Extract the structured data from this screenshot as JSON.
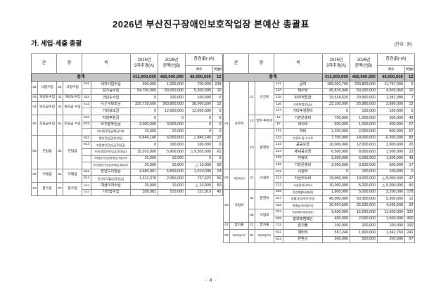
{
  "title": "2026년 부산진구장애인보호작업장 본예산 총괄표",
  "section_heading": "가. 세입·세출 총괄",
  "unit_label": "(단위 : 원)",
  "page_number": "- 4 -",
  "header": {
    "gwan": "관",
    "hang": "항",
    "mok": "목",
    "col_a_l1": "2025년",
    "col_a_l2": "3차추경(A)",
    "col_b_l1": "2026년",
    "col_b_l2": "본예산(B)",
    "diff": "증감(B)-(A)",
    "amount": "액수",
    "ratio": "비율(%)"
  },
  "revenue": {
    "total": {
      "label": "총계",
      "a": "412,000,000",
      "b": "460,000,000",
      "diff": "48,000,000",
      "ratio": "12"
    },
    "rows": [
      [
        {
          "t": "02",
          "rs": 2
        },
        {
          "t": "사업수입",
          "rs": 2
        },
        {
          "t": "21",
          "rs": 2
        },
        {
          "t": "사업수입",
          "rs": 2
        },
        {
          "t": "211"
        },
        {
          "t": "세차사업수입"
        },
        {
          "t": "300,000"
        },
        {
          "t": "1,000,000"
        },
        {
          "t": "700,000"
        },
        {
          "t": "233"
        }
      ],
      [
        null,
        null,
        null,
        null,
        {
          "t": ""
        },
        {
          "t": "임가공수입"
        },
        {
          "t": "54,700,000"
        },
        {
          "t": "60,000,000"
        },
        {
          "t": "5,300,000"
        },
        {
          "t": "10"
        }
      ],
      [
        {
          "t": "03"
        },
        {
          "t": "과년도수입"
        },
        {
          "t": "31"
        },
        {
          "t": "과년도수입"
        },
        {
          "t": "311"
        },
        {
          "t": "과년도수입"
        },
        {
          "t": "0"
        },
        {
          "t": "100,000"
        },
        {
          "t": "100,000"
        },
        {
          "t": "0"
        }
      ],
      [
        {
          "t": "04",
          "rs": 2
        },
        {
          "t": "보조금수입",
          "rs": 2
        },
        {
          "t": "41",
          "rs": 2
        },
        {
          "t": "보조금\n수입",
          "rs": 2
        },
        {
          "t": "412"
        },
        {
          "t": "시군구보조금"
        },
        {
          "t": "325,739,500"
        },
        {
          "t": "363,800,000"
        },
        {
          "t": "38,060,500"
        },
        {
          "t": "12"
        }
      ],
      [
        null,
        null,
        null,
        null,
        {
          "t": ""
        },
        {
          "t": "기타보조금"
        },
        {
          "t": "0"
        },
        {
          "t": "12,000,000"
        },
        {
          "t": "12,000,000"
        },
        {
          "t": "0"
        }
      ],
      [
        {
          "t": "05",
          "rs": 3
        },
        {
          "t": "후원금수입",
          "rs": 3
        },
        {
          "t": "51",
          "rs": 3
        },
        {
          "t": "후원금\n수입",
          "rs": 3
        },
        {
          "t": "511"
        },
        {
          "t": "지정후원금"
        },
        {
          "t": "0"
        },
        {
          "t": "0"
        },
        {
          "t": "0"
        },
        {
          "t": "0"
        }
      ],
      [
        null,
        null,
        null,
        null,
        {
          "t": "512"
        },
        {
          "t": "비지정후원금"
        },
        {
          "t": "3,000,000"
        },
        {
          "t": "3,000,000"
        },
        {
          "t": "0"
        },
        {
          "t": "0"
        }
      ],
      [
        null,
        null,
        null,
        null,
        {
          "t": ""
        },
        {
          "t": "비지정후원금예금이자",
          "f": "f-sm"
        },
        {
          "t": "10,000"
        },
        {
          "t": "10,000"
        },
        {
          "t": "0"
        },
        {
          "t": "0"
        }
      ],
      [
        {
          "t": "08",
          "rs": 5
        },
        {
          "t": "전입금",
          "rs": 5
        },
        {
          "t": "81",
          "rs": 5
        },
        {
          "t": "전입금",
          "rs": 5
        },
        {
          "t": "811"
        },
        {
          "t": "법인전입금(자부담)",
          "f": "f-sm"
        },
        {
          "t": "6,846,140"
        },
        {
          "t": "6,000,000"
        },
        {
          "t": "△ 846,140"
        },
        {
          "t": "12"
        }
      ],
      [
        null,
        null,
        null,
        null,
        {
          "t": "812"
        },
        {
          "t": "지정법인전입금(후원금)",
          "f": "f-sm"
        },
        {
          "t": "0"
        },
        {
          "t": "100,000"
        },
        {
          "t": "100,000"
        },
        {
          "t": "0"
        }
      ],
      [
        null,
        null,
        null,
        null,
        {
          "t": ""
        },
        {
          "t": "비지정법인전입금(후원금)",
          "f": "f-sm"
        },
        {
          "t": "15,203,000"
        },
        {
          "t": "5,900,000"
        },
        {
          "t": "△ 9,303,000"
        },
        {
          "t": "61"
        }
      ],
      [
        null,
        null,
        null,
        null,
        {
          "t": ""
        },
        {
          "t": "지정법인전입금(후원금) 예금이자",
          "f": "f-tiny"
        },
        {
          "t": "10,000"
        },
        {
          "t": "10,000"
        },
        {
          "t": "0"
        },
        {
          "t": "0"
        }
      ],
      [
        null,
        null,
        null,
        null,
        {
          "t": ""
        },
        {
          "t": "비지정법인전입금(후원금) 예금이자",
          "f": "f-tiny"
        },
        {
          "t": "20,000"
        },
        {
          "t": "10,000"
        },
        {
          "t": "△ 10,000"
        },
        {
          "t": "50"
        }
      ],
      [
        {
          "t": "09",
          "rs": 2
        },
        {
          "t": "이월금",
          "rs": 2
        },
        {
          "t": "91",
          "rs": 2
        },
        {
          "t": "이월금",
          "rs": 2
        },
        {
          "t": "911"
        },
        {
          "t": "전년도이월금"
        },
        {
          "t": "4,480,901"
        },
        {
          "t": "5,500,000"
        },
        {
          "t": "1,019,099"
        },
        {
          "t": "23"
        }
      ],
      [
        null,
        null,
        null,
        null,
        {
          "t": "912"
        },
        {
          "t": "전년도이월금(후원금)",
          "f": "f-sm"
        },
        {
          "t": "1,312,378"
        },
        {
          "t": "2,050,000"
        },
        {
          "t": "737,622"
        },
        {
          "t": "56"
        }
      ],
      [
        {
          "t": "10",
          "rs": 2
        },
        {
          "t": "잡수입",
          "rs": 2
        },
        {
          "t": "##",
          "rs": 2
        },
        {
          "t": "잡수입",
          "rs": 2
        },
        {
          "t": "1012",
          "f": "f-tiny"
        },
        {
          "t": "예금이자수입"
        },
        {
          "t": "20,000"
        },
        {
          "t": "10,000"
        },
        {
          "t": "△ 10,000"
        },
        {
          "t": "50"
        }
      ],
      [
        null,
        null,
        null,
        null,
        {
          "t": "1013",
          "f": "f-tiny"
        },
        {
          "t": "기타잡수입"
        },
        {
          "t": "358,081"
        },
        {
          "t": "510,000"
        },
        {
          "t": "151,919"
        },
        {
          "t": "42"
        }
      ]
    ]
  },
  "expenditure": {
    "total": {
      "label": "총계",
      "a": "412,000,000",
      "b": "460,000,000",
      "diff": "48,000,000",
      "ratio": "12"
    },
    "rows": [
      [
        {
          "t": "01",
          "rs": 13
        },
        {
          "t": "사무비",
          "rs": 13
        },
        {
          "t": "11",
          "rs": 5
        },
        {
          "t": "인건비",
          "rs": 5
        },
        {
          "t": "111"
        },
        {
          "t": "급여"
        },
        {
          "t": "189,002,700"
        },
        {
          "t": "200,800,000"
        },
        {
          "t": "11,797,300"
        },
        {
          "t": "6"
        }
      ],
      [
        null,
        null,
        null,
        null,
        {
          "t": "112"
        },
        {
          "t": "제수당"
        },
        {
          "t": "45,816,940"
        },
        {
          "t": "50,320,000"
        },
        {
          "t": "4,503,060"
        },
        {
          "t": "10"
        }
      ],
      [
        null,
        null,
        null,
        null,
        {
          "t": "115"
        },
        {
          "t": "퇴직적립금"
        },
        {
          "t": "19,518,620"
        },
        {
          "t": "20,900,000"
        },
        {
          "t": "1,381,380"
        },
        {
          "t": "7"
        }
      ],
      [
        null,
        null,
        null,
        null,
        {
          "t": "116"
        },
        {
          "t": "사회보험부담금",
          "f": "f-sm"
        },
        {
          "t": "23,100,000"
        },
        {
          "t": "25,980,000"
        },
        {
          "t": "2,880,000"
        },
        {
          "t": "12"
        }
      ],
      [
        null,
        null,
        null,
        null,
        {
          "t": "117"
        },
        {
          "t": "기타후생경비"
        },
        {
          "t": "0"
        },
        {
          "t": "100,000"
        },
        {
          "t": "100,000"
        },
        {
          "t": "0"
        }
      ],
      [
        null,
        null,
        {
          "t": "12",
          "rs": 2
        },
        {
          "t": "업무\n추진비",
          "rs": 2
        },
        {
          "t": "12"
        },
        {
          "t": "기관운영비"
        },
        {
          "t": "700,000"
        },
        {
          "t": "1,000,000"
        },
        {
          "t": "300,000"
        },
        {
          "t": "43"
        }
      ],
      [
        null,
        null,
        null,
        null,
        {
          "t": "12"
        },
        {
          "t": "회의비"
        },
        {
          "t": "600,000"
        },
        {
          "t": "1,000,000"
        },
        {
          "t": "400,000"
        },
        {
          "t": "67"
        }
      ],
      [
        null,
        null,
        {
          "t": "13",
          "rs": 6
        },
        {
          "t": "운영비",
          "rs": 6
        },
        {
          "t": "131"
        },
        {
          "t": "여비"
        },
        {
          "t": "1,200,000"
        },
        {
          "t": "2,000,000"
        },
        {
          "t": "800,000"
        },
        {
          "t": "67"
        }
      ],
      [
        null,
        null,
        null,
        null,
        {
          "t": "132"
        },
        {
          "t": "수용비 및 수수료",
          "f": "f-sm"
        },
        {
          "t": "7,700,000"
        },
        {
          "t": "14,000,000"
        },
        {
          "t": "6,300,000"
        },
        {
          "t": "82"
        }
      ],
      [
        null,
        null,
        null,
        null,
        {
          "t": "133"
        },
        {
          "t": "공공요금"
        },
        {
          "t": "10,000,000"
        },
        {
          "t": "12,000,000"
        },
        {
          "t": "2,000,000"
        },
        {
          "t": "20"
        }
      ],
      [
        null,
        null,
        null,
        null,
        {
          "t": "134"
        },
        {
          "t": "제세공과금"
        },
        {
          "t": "6,500,000"
        },
        {
          "t": "8,000,000"
        },
        {
          "t": "1,500,000"
        },
        {
          "t": "23"
        }
      ],
      [
        null,
        null,
        null,
        null,
        {
          "t": "135"
        },
        {
          "t": "차량비"
        },
        {
          "t": "3,500,000"
        },
        {
          "t": "5,000,000"
        },
        {
          "t": "1,500,000"
        },
        {
          "t": "43"
        }
      ],
      [
        null,
        null,
        null,
        null,
        {
          "t": "136"
        },
        {
          "t": "기타운영비"
        },
        {
          "t": "3,000,000"
        },
        {
          "t": "3,500,000"
        },
        {
          "t": "500,000"
        },
        {
          "t": "17"
        }
      ],
      [
        {
          "t": "02",
          "rs": 3
        },
        {
          "t": "재산조성비",
          "rs": 3,
          "f": "f-tiny"
        },
        {
          "t": "21",
          "rs": 3
        },
        {
          "t": "시설비",
          "rs": 3
        },
        {
          "t": "211"
        },
        {
          "t": "시설비"
        },
        {
          "t": "0"
        },
        {
          "t": "100,000"
        },
        {
          "t": "100,000"
        },
        {
          "t": "0"
        }
      ],
      [
        null,
        null,
        null,
        null,
        {
          "t": "212"
        },
        {
          "t": "자산취득비"
        },
        {
          "t": "19,000,000"
        },
        {
          "t": "10,000,000"
        },
        {
          "t": "△ 9,000,000"
        },
        {
          "t": "47"
        }
      ],
      [
        null,
        null,
        null,
        null,
        {
          "t": "213"
        },
        {
          "t": "시설장비유지비",
          "f": "f-sm"
        },
        {
          "t": "10,000,000"
        },
        {
          "t": "5,000,000"
        },
        {
          "t": "△ 5,000,000"
        },
        {
          "t": "50"
        }
      ],
      [
        {
          "t": "03",
          "rs": 5
        },
        {
          "t": "사업비",
          "rs": 5
        },
        {
          "t": "31",
          "rs": 3
        },
        {
          "t": "운영비",
          "rs": 3
        },
        {
          "t": "316"
        },
        {
          "t": "직업재활비(재료)",
          "f": "f-sm"
        },
        {
          "t": "1,800,000"
        },
        {
          "t": "5,000,000"
        },
        {
          "t": "3,200,000"
        },
        {
          "t": "178"
        }
      ],
      [
        null,
        null,
        null,
        null,
        {
          "t": "317"
        },
        {
          "t": "자활사업비(인건비)",
          "f": "f-sm"
        },
        {
          "t": "45,000,000"
        },
        {
          "t": "50,300,000"
        },
        {
          "t": "5,300,000"
        },
        {
          "t": "12"
        }
      ],
      [
        null,
        null,
        null,
        null,
        {
          "t": "318"
        },
        {
          "t": "특별급식비(중식)",
          "f": "f-sm"
        },
        {
          "t": "20,604,500"
        },
        {
          "t": "25,200,000"
        },
        {
          "t": "4,595,500"
        },
        {
          "t": "22"
        }
      ],
      [
        null,
        null,
        {
          "t": "33",
          "rs": 2
        },
        {
          "t": "사업비",
          "rs": 2
        },
        {
          "t": "334"
        },
        {
          "t": "직업재활사업비(훈련)",
          "f": "f-tiny"
        },
        {
          "t": "3,600,000"
        },
        {
          "t": "15,200,000"
        },
        {
          "t": "11,600,000"
        },
        {
          "t": "322"
        }
      ],
      [
        null,
        null,
        null,
        null,
        {
          "t": "335"
        },
        {
          "t": "홍보및캠페인"
        },
        {
          "t": "400,000"
        },
        {
          "t": "2,000,000"
        },
        {
          "t": "1,600,000"
        },
        {
          "t": "400"
        }
      ],
      [
        {
          "t": "07"
        },
        {
          "t": "잡지출"
        },
        {
          "t": "71"
        },
        {
          "t": "잡지출"
        },
        {
          "t": "711"
        },
        {
          "t": "잡지출"
        },
        {
          "t": "100,000"
        },
        {
          "t": "200,000"
        },
        {
          "t": "100,000"
        },
        {
          "t": "100"
        }
      ],
      [
        {
          "t": "08",
          "rs": 2
        },
        {
          "t": "예비비및기타",
          "rs": 2,
          "f": "f-tiny"
        },
        {
          "t": "81",
          "rs": 2
        },
        {
          "t": "예비비및기타",
          "rs": 2,
          "f": "f-tiny"
        },
        {
          "t": "811"
        },
        {
          "t": "예비비"
        },
        {
          "t": "557,240"
        },
        {
          "t": "1,900,000"
        },
        {
          "t": "1,342,760"
        },
        {
          "t": "241"
        }
      ],
      [
        null,
        null,
        null,
        null,
        {
          "t": "812"
        },
        {
          "t": "반환금"
        },
        {
          "t": "300,000"
        },
        {
          "t": "500,000"
        },
        {
          "t": "200,000"
        },
        {
          "t": "67"
        }
      ]
    ]
  }
}
